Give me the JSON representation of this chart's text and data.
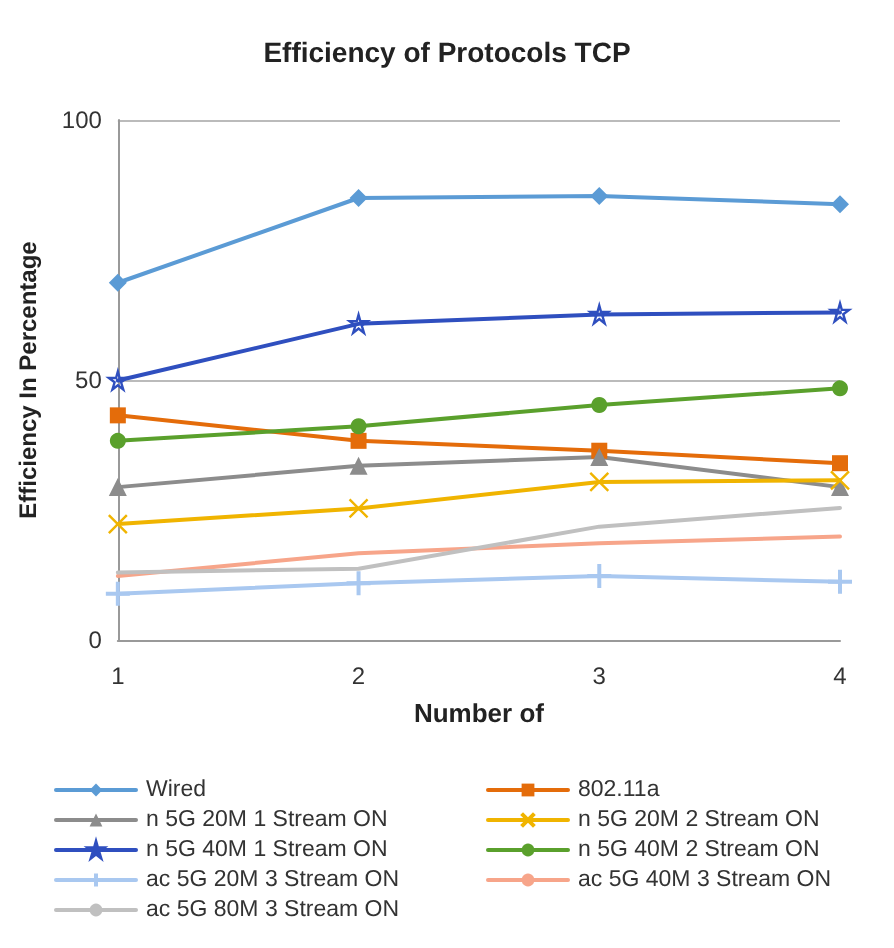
{
  "chart_data": {
    "type": "line",
    "title": "Efficiency of Protocols TCP",
    "xlabel": "Number of",
    "ylabel": "Efficiency In Percentage",
    "categories": [
      "1",
      "2",
      "3",
      "4"
    ],
    "ylim": [
      0,
      100
    ],
    "yticks": [
      0,
      50,
      100
    ],
    "grid": "y",
    "legend": "bottom",
    "series": [
      {
        "name": "Wired",
        "color": "#5b9bd5",
        "marker": "diamond",
        "values": [
          68.7,
          85,
          85.4,
          83.8
        ]
      },
      {
        "name": "802.11a",
        "color": "#e46c0a",
        "marker": "square",
        "values": [
          43.2,
          38.3,
          36.4,
          34
        ]
      },
      {
        "name": "n 5G 20M 1 Stream ON",
        "color": "#8c8c8c",
        "marker": "triangle",
        "values": [
          29.4,
          33.5,
          35.2,
          29.4
        ]
      },
      {
        "name": "n 5G 20M 2 Stream ON",
        "color": "#f0b400",
        "marker": "cross",
        "values": [
          22.3,
          25.3,
          30.4,
          30.7
        ]
      },
      {
        "name": "n 5G 40M 1 Stream ON",
        "color": "#2f4fbf",
        "marker": "star",
        "values": [
          49.9,
          60.8,
          62.6,
          63
        ]
      },
      {
        "name": "n 5G 40M 2 Stream ON",
        "color": "#5aa02c",
        "marker": "circle",
        "values": [
          38.3,
          41.1,
          45.2,
          48.4
        ]
      },
      {
        "name": "ac 5G 20M 3 Stream ON",
        "color": "#a9c8f0",
        "marker": "plus",
        "values": [
          8.9,
          10.9,
          12.3,
          11.2
        ]
      },
      {
        "name": "ac 5G 40M 3 Stream ON",
        "color": "#f7a58a",
        "marker": "none",
        "values": [
          12.3,
          16.7,
          18.6,
          19.9
        ]
      },
      {
        "name": "ac 5G 80M 3 Stream ON",
        "color": "#c0c0c0",
        "marker": "none",
        "values": [
          13,
          13.7,
          21.8,
          25.4
        ]
      }
    ]
  }
}
